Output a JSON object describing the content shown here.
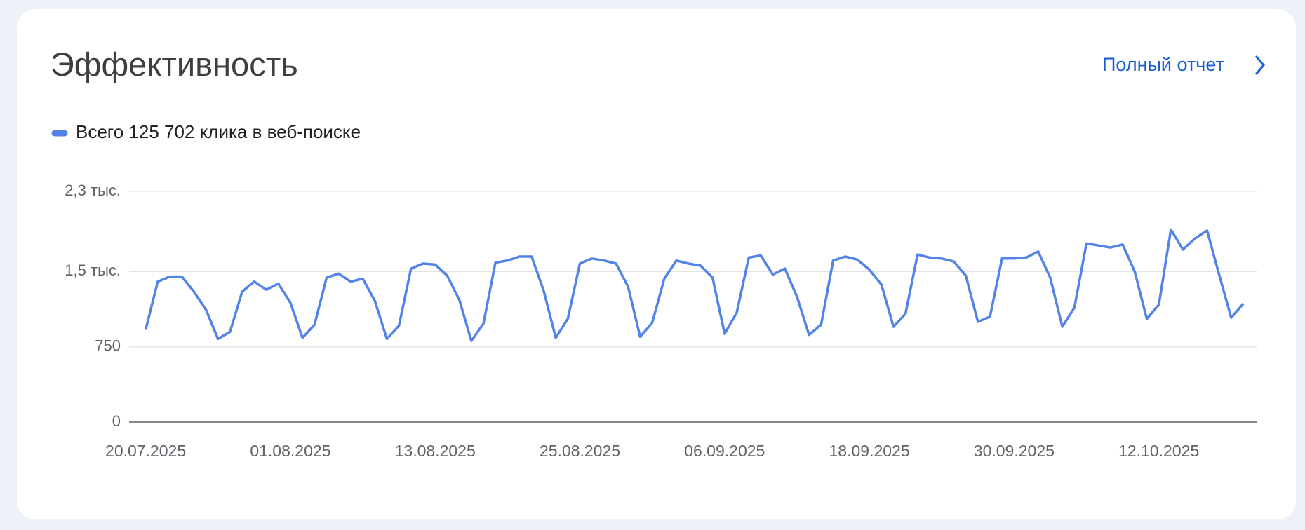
{
  "header": {
    "title": "Эффективность",
    "link": "Полный отчет"
  },
  "chart_data": {
    "type": "line",
    "x": [
      "20.07.2025",
      "21.07.2025",
      "22.07.2025",
      "23.07.2025",
      "24.07.2025",
      "25.07.2025",
      "26.07.2025",
      "27.07.2025",
      "28.07.2025",
      "29.07.2025",
      "30.07.2025",
      "31.07.2025",
      "01.08.2025",
      "02.08.2025",
      "03.08.2025",
      "04.08.2025",
      "05.08.2025",
      "06.08.2025",
      "07.08.2025",
      "08.08.2025",
      "09.08.2025",
      "10.08.2025",
      "11.08.2025",
      "12.08.2025",
      "13.08.2025",
      "14.08.2025",
      "15.08.2025",
      "16.08.2025",
      "17.08.2025",
      "18.08.2025",
      "19.08.2025",
      "20.08.2025",
      "21.08.2025",
      "22.08.2025",
      "23.08.2025",
      "24.08.2025",
      "25.08.2025",
      "26.08.2025",
      "27.08.2025",
      "28.08.2025",
      "29.08.2025",
      "30.08.2025",
      "31.08.2025",
      "01.09.2025",
      "02.09.2025",
      "03.09.2025",
      "04.09.2025",
      "05.09.2025",
      "06.09.2025",
      "07.09.2025",
      "08.09.2025",
      "09.09.2025",
      "10.09.2025",
      "11.09.2025",
      "12.09.2025",
      "13.09.2025",
      "14.09.2025",
      "15.09.2025",
      "16.09.2025",
      "17.09.2025",
      "18.09.2025",
      "19.09.2025",
      "20.09.2025",
      "21.09.2025",
      "22.09.2025",
      "23.09.2025",
      "24.09.2025",
      "25.09.2025",
      "26.09.2025",
      "27.09.2025",
      "28.09.2025",
      "29.09.2025",
      "30.09.2025",
      "01.10.2025",
      "02.10.2025",
      "03.10.2025",
      "04.10.2025",
      "05.10.2025",
      "06.10.2025",
      "07.10.2025",
      "08.10.2025",
      "09.10.2025",
      "10.10.2025",
      "11.10.2025",
      "12.10.2025",
      "13.10.2025",
      "14.10.2025",
      "15.10.2025",
      "16.10.2025",
      "17.10.2025",
      "18.10.2025",
      "19.10.2025"
    ],
    "series": [
      {
        "name": "Всего 125 702 клика в веб-поиске",
        "color": "#5383e8",
        "values": [
          920,
          1400,
          1450,
          1450,
          1300,
          1120,
          830,
          900,
          1300,
          1400,
          1320,
          1380,
          1190,
          840,
          970,
          1440,
          1480,
          1400,
          1430,
          1210,
          830,
          960,
          1530,
          1580,
          1570,
          1460,
          1220,
          810,
          980,
          1590,
          1610,
          1650,
          1650,
          1310,
          840,
          1030,
          1580,
          1630,
          1610,
          1580,
          1350,
          850,
          990,
          1430,
          1610,
          1580,
          1560,
          1440,
          880,
          1090,
          1640,
          1660,
          1470,
          1530,
          1250,
          870,
          970,
          1610,
          1650,
          1620,
          1520,
          1370,
          950,
          1080,
          1670,
          1640,
          1630,
          1600,
          1460,
          1000,
          1050,
          1630,
          1630,
          1640,
          1700,
          1440,
          950,
          1140,
          1780,
          1760,
          1740,
          1770,
          1500,
          1030,
          1170,
          1920,
          1720,
          1830,
          1910,
          1470,
          1040,
          1180
        ]
      }
    ],
    "xticks": [
      "20.07.2025",
      "01.08.2025",
      "13.08.2025",
      "25.08.2025",
      "06.09.2025",
      "18.09.2025",
      "30.09.2025",
      "12.10.2025"
    ],
    "ylim": [
      0,
      2300
    ],
    "yticks": [
      0,
      750,
      {
        "value": 1500,
        "label": "1,5 тыс."
      },
      {
        "value": 2300,
        "label": "2,3 тыс."
      }
    ],
    "grid": true
  }
}
